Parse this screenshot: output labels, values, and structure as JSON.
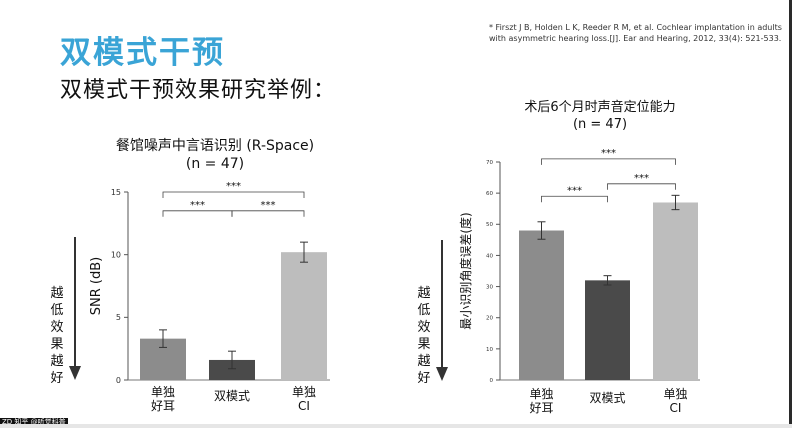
{
  "slide": {
    "title": "双模式干预",
    "subtitle": "双模式干预效果研究举例：",
    "reference": "*  Firszt J B, Holden L K, Reeder R M, et al. Cochlear implantation in adults with asymmetric hearing loss.[J]. Ear and Hearing, 2012, 33(4): 521-533.",
    "side_label_left": "越低效果越好",
    "side_label_right": "越低效果越好",
    "watermark": "ZD 知乎 @听觉科普"
  },
  "colors": {
    "title": "#3aa4d6",
    "bar_good_ear": "#8c8c8c",
    "bar_bimodal": "#4a4a4a",
    "bar_ci": "#bdbdbd"
  },
  "chart_data": [
    {
      "type": "bar",
      "title": "餐馆噪声中言语识别 (R-Space)",
      "subtitle": "(n = 47)",
      "ylabel": "SNR (dB)",
      "xlabel": "",
      "ylim": [
        0,
        15
      ],
      "yticks": [
        "0",
        "5",
        "10",
        "15"
      ],
      "categories": [
        "单独\n好耳",
        "双模式",
        "单独\nCI"
      ],
      "values": [
        3.3,
        1.6,
        10.2
      ],
      "errors": [
        0.7,
        0.7,
        0.8
      ],
      "significance": [
        {
          "from": 0,
          "to": 1,
          "label": "***",
          "level": 13.5
        },
        {
          "from": 1,
          "to": 2,
          "label": "***",
          "level": 13.5
        },
        {
          "from": 0,
          "to": 2,
          "label": "***",
          "level": 15.0
        }
      ]
    },
    {
      "type": "bar",
      "title": "术后6个月时声音定位能力",
      "subtitle": "(n = 47)",
      "ylabel": "最小识别角度误差(度)",
      "xlabel": "",
      "ylim": [
        0,
        70
      ],
      "yticks": [
        "0",
        "10",
        "20",
        "30",
        "40",
        "50",
        "60",
        "70"
      ],
      "categories": [
        "单独\n好耳",
        "双模式",
        "单独\nCI"
      ],
      "values": [
        48,
        32,
        57
      ],
      "errors": [
        2.8,
        1.5,
        2.3
      ],
      "significance": [
        {
          "from": 0,
          "to": 1,
          "label": "***",
          "level": 59
        },
        {
          "from": 1,
          "to": 2,
          "label": "***",
          "level": 63
        },
        {
          "from": 0,
          "to": 2,
          "label": "***",
          "level": 71
        }
      ]
    }
  ]
}
